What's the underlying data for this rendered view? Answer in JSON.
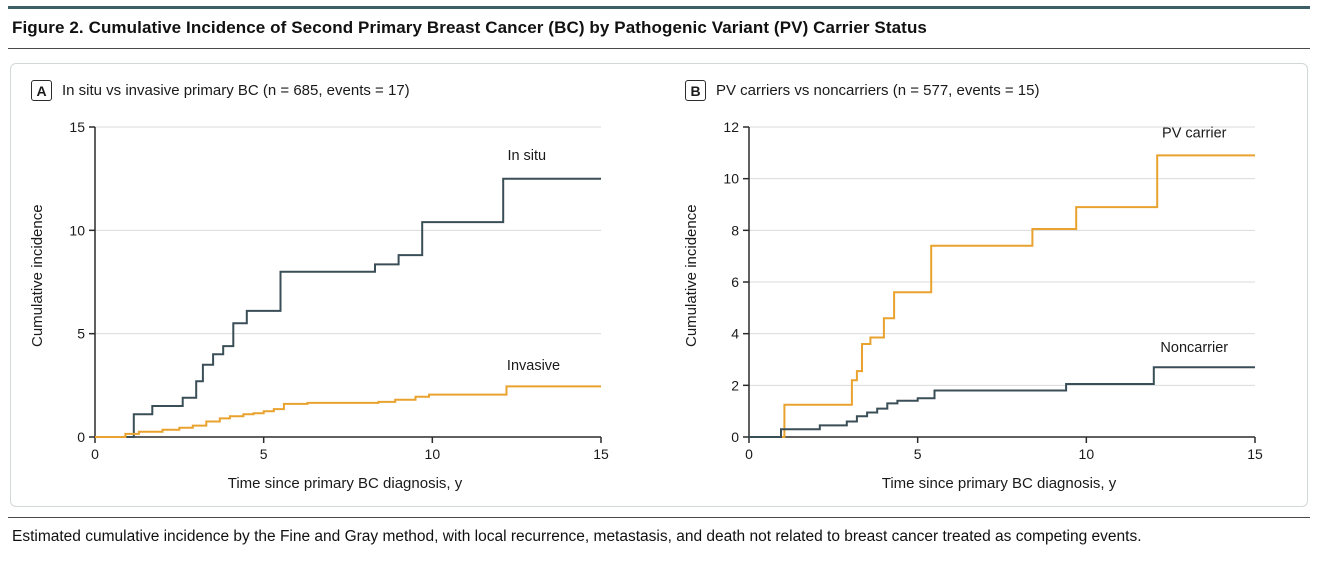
{
  "header": {
    "title": "Figure 2. Cumulative Incidence of Second Primary Breast Cancer (BC) by Pathogenic Variant (PV) Carrier Status"
  },
  "panels": [
    {
      "label": "A",
      "title": "In situ vs invasive primary BC (n = 685, events = 17)",
      "ylabel": "Cumulative incidence",
      "xlabel": "Time since primary BC diagnosis, y"
    },
    {
      "label": "B",
      "title": "PV carriers vs noncarriers (n = 577, events = 15)",
      "ylabel": "Cumulative incidence",
      "xlabel": "Time since primary BC diagnosis, y"
    }
  ],
  "footer": {
    "text": "Estimated cumulative incidence by the Fine and Gray method, with local recurrence, metastasis, and death not related to breast cancer treated as competing events."
  },
  "colors": {
    "dark_series": "#3a4e57",
    "orange_series": "#eaa22f",
    "grid": "#d9dbdc",
    "axis": "#2b2b2b",
    "rule": "#3c6066"
  },
  "chart_data": [
    {
      "type": "line",
      "step": true,
      "title": "In situ vs invasive primary BC (n = 685, events = 17)",
      "xlabel": "Time since primary BC diagnosis, y",
      "ylabel": "Cumulative incidence",
      "xlim": [
        0,
        15
      ],
      "ylim": [
        0,
        15
      ],
      "xticks": [
        0,
        5,
        10,
        15
      ],
      "yticks": [
        0,
        5,
        10,
        15
      ],
      "grid": "horizontal",
      "legend_position": "inline-right",
      "series": [
        {
          "name": "In situ",
          "color": "#3a4e57",
          "label_at": [
            12.8,
            13.4
          ],
          "points": [
            [
              0,
              0
            ],
            [
              1.15,
              1.1
            ],
            [
              1.7,
              1.5
            ],
            [
              2.6,
              1.9
            ],
            [
              3.0,
              2.7
            ],
            [
              3.2,
              3.5
            ],
            [
              3.5,
              4.0
            ],
            [
              3.8,
              4.4
            ],
            [
              4.1,
              5.5
            ],
            [
              4.5,
              6.1
            ],
            [
              5.5,
              8.0
            ],
            [
              8.3,
              8.35
            ],
            [
              9.0,
              8.8
            ],
            [
              9.7,
              10.4
            ],
            [
              12.1,
              12.5
            ],
            [
              15,
              12.5
            ]
          ]
        },
        {
          "name": "Invasive",
          "color": "#eaa22f",
          "label_at": [
            13.0,
            3.25
          ],
          "points": [
            [
              0,
              0
            ],
            [
              0.9,
              0.15
            ],
            [
              1.3,
              0.25
            ],
            [
              2.0,
              0.35
            ],
            [
              2.5,
              0.45
            ],
            [
              2.9,
              0.55
            ],
            [
              3.3,
              0.75
            ],
            [
              3.7,
              0.9
            ],
            [
              4.0,
              1.0
            ],
            [
              4.4,
              1.1
            ],
            [
              4.7,
              1.15
            ],
            [
              5.0,
              1.25
            ],
            [
              5.3,
              1.35
            ],
            [
              5.6,
              1.6
            ],
            [
              6.3,
              1.65
            ],
            [
              8.4,
              1.7
            ],
            [
              8.9,
              1.8
            ],
            [
              9.5,
              1.95
            ],
            [
              9.9,
              2.05
            ],
            [
              12.2,
              2.45
            ],
            [
              15,
              2.45
            ]
          ]
        }
      ]
    },
    {
      "type": "line",
      "step": true,
      "title": "PV carriers vs noncarriers (n = 577, events = 15)",
      "xlabel": "Time since primary BC diagnosis, y",
      "ylabel": "Cumulative incidence",
      "xlim": [
        0,
        15
      ],
      "ylim": [
        0,
        12
      ],
      "xticks": [
        0,
        5,
        10,
        15
      ],
      "yticks": [
        0,
        2,
        4,
        6,
        8,
        10,
        12
      ],
      "grid": "horizontal",
      "legend_position": "inline-right",
      "series": [
        {
          "name": "PV carrier",
          "color": "#eaa22f",
          "label_at": [
            13.2,
            11.6
          ],
          "points": [
            [
              0,
              0
            ],
            [
              1.05,
              1.25
            ],
            [
              3.05,
              2.2
            ],
            [
              3.2,
              2.55
            ],
            [
              3.35,
              3.6
            ],
            [
              3.6,
              3.85
            ],
            [
              4.0,
              4.6
            ],
            [
              4.3,
              5.6
            ],
            [
              5.4,
              7.4
            ],
            [
              8.4,
              8.05
            ],
            [
              9.7,
              8.9
            ],
            [
              12.1,
              10.9
            ],
            [
              15,
              10.9
            ]
          ]
        },
        {
          "name": "Noncarrier",
          "color": "#3a4e57",
          "label_at": [
            13.2,
            3.3
          ],
          "points": [
            [
              0,
              0
            ],
            [
              0.95,
              0.3
            ],
            [
              2.1,
              0.45
            ],
            [
              2.9,
              0.6
            ],
            [
              3.2,
              0.8
            ],
            [
              3.5,
              0.95
            ],
            [
              3.8,
              1.1
            ],
            [
              4.1,
              1.3
            ],
            [
              4.4,
              1.4
            ],
            [
              5.0,
              1.5
            ],
            [
              5.5,
              1.8
            ],
            [
              9.4,
              2.05
            ],
            [
              12.0,
              2.7
            ],
            [
              15,
              2.7
            ]
          ]
        }
      ]
    }
  ]
}
